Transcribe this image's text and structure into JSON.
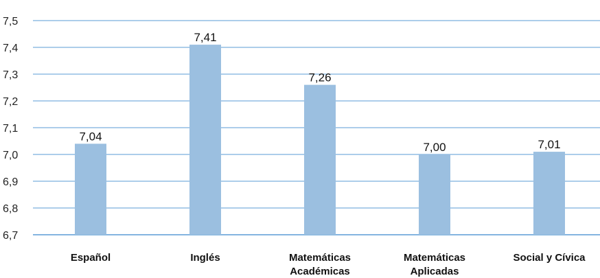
{
  "chart_data": {
    "type": "bar",
    "categories": [
      "Español",
      "Inglés",
      "Matemáticas Académicas",
      "Matemáticas Aplicadas",
      "Social y Cívica"
    ],
    "category_lines": [
      [
        "Español"
      ],
      [
        "Inglés"
      ],
      [
        "Matemáticas",
        "Académicas"
      ],
      [
        "Matemáticas",
        "Aplicadas"
      ],
      [
        "Social y Cívica"
      ]
    ],
    "values": [
      7.04,
      7.41,
      7.26,
      7.0,
      7.01
    ],
    "value_labels": [
      "7,04",
      "7,41",
      "7,26",
      "7,00",
      "7,01"
    ],
    "title": "",
    "xlabel": "",
    "ylabel": "",
    "ylim": [
      6.7,
      7.5
    ],
    "yticks": [
      6.7,
      6.8,
      6.9,
      7.0,
      7.1,
      7.2,
      7.3,
      7.4,
      7.5
    ],
    "ytick_labels": [
      "6,7",
      "6,8",
      "6,9",
      "7,0",
      "7,1",
      "7,2",
      "7,3",
      "7,4",
      "7,5"
    ],
    "grid": true,
    "legend": "none",
    "colors": {
      "bar": "#9bbfe0",
      "grid": "#5a9bd5",
      "axis": "#5a9bd5"
    }
  }
}
